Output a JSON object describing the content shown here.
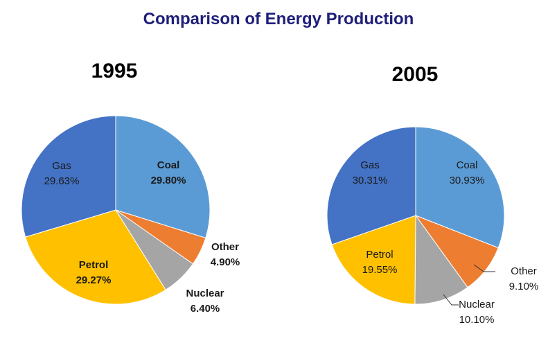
{
  "title": "Comparison of Energy Production",
  "chart_data": [
    {
      "type": "pie",
      "title": "1995",
      "slices": [
        {
          "name": "Coal",
          "value": 29.8,
          "label": "29.80%",
          "color": "#5b9bd5"
        },
        {
          "name": "Other",
          "value": 4.9,
          "label": "4.90%",
          "color": "#ed7d31"
        },
        {
          "name": "Nuclear",
          "value": 6.4,
          "label": "6.40%",
          "color": "#a5a5a5"
        },
        {
          "name": "Petrol",
          "value": 29.27,
          "label": "29.27%",
          "color": "#ffc000"
        },
        {
          "name": "Gas",
          "value": 29.63,
          "label": "29.63%",
          "color": "#4472c4"
        }
      ]
    },
    {
      "type": "pie",
      "title": "2005",
      "slices": [
        {
          "name": "Coal",
          "value": 30.93,
          "label": "30.93%",
          "color": "#5b9bd5"
        },
        {
          "name": "Other",
          "value": 9.1,
          "label": "9.10%",
          "color": "#ed7d31"
        },
        {
          "name": "Nuclear",
          "value": 10.1,
          "label": "10.10%",
          "color": "#a5a5a5"
        },
        {
          "name": "Petrol",
          "value": 19.55,
          "label": "19.55%",
          "color": "#ffc000"
        },
        {
          "name": "Gas",
          "value": 30.31,
          "label": "30.31%",
          "color": "#4472c4"
        }
      ]
    }
  ]
}
